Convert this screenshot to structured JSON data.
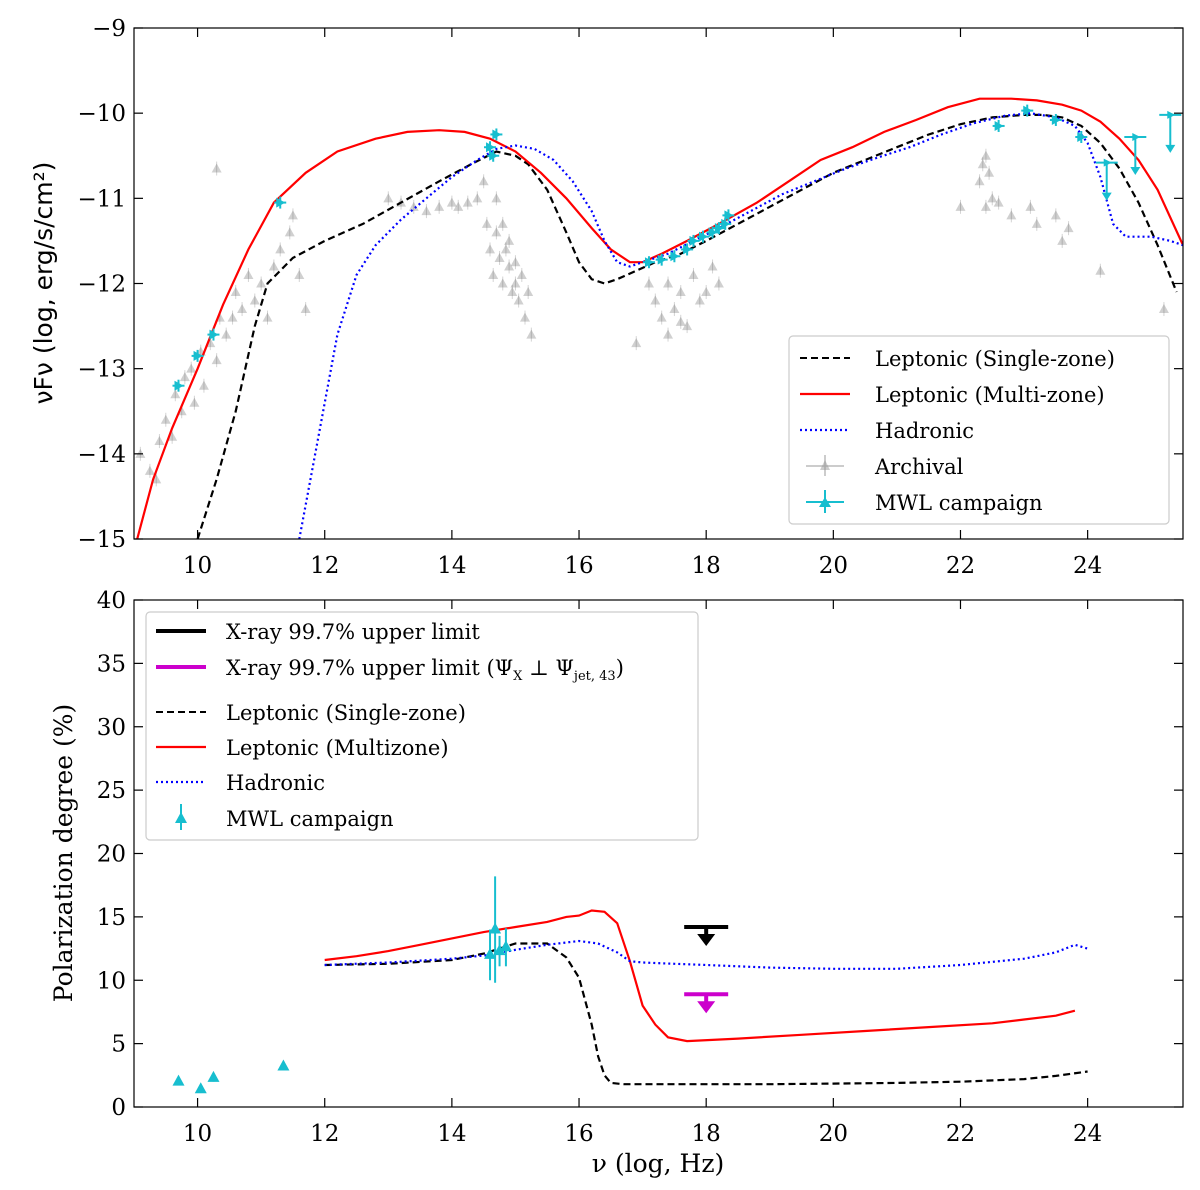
{
  "chart_data": [
    {
      "type": "line",
      "panel": "top",
      "ylabel": "νFν (log, erg/s/cm²)",
      "xlabel": "",
      "xlim": [
        9,
        25.5
      ],
      "ylim": [
        -15,
        -9
      ],
      "xticks": [
        10,
        12,
        14,
        16,
        18,
        20,
        22,
        24
      ],
      "yticks": [
        -15,
        -14,
        -13,
        -12,
        -11,
        -10,
        -9
      ],
      "legend_position": "lower-right",
      "legend": [
        {
          "label": "Leptonic (Single-zone)",
          "style": "dashed",
          "color": "#000000"
        },
        {
          "label": "Leptonic (Multi-zone)",
          "style": "solid",
          "color": "#ff0000"
        },
        {
          "label": "Hadronic",
          "style": "dotted",
          "color": "#0000ff"
        },
        {
          "label": "Archival",
          "style": "marker-gray",
          "color": "#888888"
        },
        {
          "label": "MWL campaign",
          "style": "marker-cyan",
          "color": "#17becf"
        }
      ],
      "series": [
        {
          "name": "Leptonic (Single-zone)",
          "color": "#000000",
          "dash": "dashed",
          "x": [
            10.0,
            10.3,
            10.6,
            10.9,
            11.1,
            11.5,
            12.0,
            12.6,
            13.2,
            13.8,
            14.3,
            14.7,
            15.0,
            15.2,
            15.5,
            15.8,
            16.0,
            16.2,
            16.4,
            16.6,
            16.9,
            17.2,
            17.6,
            18.0,
            18.5,
            19.0,
            19.5,
            20.0,
            20.5,
            21.0,
            21.5,
            22.0,
            22.5,
            23.0,
            23.3,
            23.6,
            23.9,
            24.2,
            24.5,
            24.8,
            25.1,
            25.4
          ],
          "y": [
            -15.0,
            -14.3,
            -13.5,
            -12.5,
            -12.0,
            -11.7,
            -11.5,
            -11.3,
            -11.05,
            -10.8,
            -10.6,
            -10.45,
            -10.5,
            -10.6,
            -10.9,
            -11.4,
            -11.75,
            -11.95,
            -12.0,
            -11.95,
            -11.85,
            -11.75,
            -11.65,
            -11.5,
            -11.3,
            -11.1,
            -10.9,
            -10.7,
            -10.55,
            -10.4,
            -10.25,
            -10.13,
            -10.05,
            -10.02,
            -10.02,
            -10.05,
            -10.15,
            -10.35,
            -10.65,
            -11.05,
            -11.55,
            -12.1
          ]
        },
        {
          "name": "Leptonic (Multi-zone)",
          "color": "#ff0000",
          "dash": "solid",
          "x": [
            9.05,
            9.3,
            9.6,
            10.0,
            10.4,
            10.8,
            11.2,
            11.7,
            12.2,
            12.8,
            13.3,
            13.8,
            14.2,
            14.6,
            15.0,
            15.4,
            15.8,
            16.2,
            16.5,
            16.8,
            17.0,
            17.3,
            17.7,
            18.2,
            18.8,
            19.3,
            19.8,
            20.3,
            20.8,
            21.3,
            21.8,
            22.3,
            22.8,
            23.2,
            23.6,
            23.9,
            24.2,
            24.5,
            24.8,
            25.1,
            25.5
          ],
          "y": [
            -15.0,
            -14.3,
            -13.7,
            -13.0,
            -12.25,
            -11.6,
            -11.05,
            -10.7,
            -10.45,
            -10.3,
            -10.22,
            -10.2,
            -10.22,
            -10.3,
            -10.45,
            -10.7,
            -11.0,
            -11.35,
            -11.6,
            -11.75,
            -11.75,
            -11.65,
            -11.5,
            -11.3,
            -11.05,
            -10.8,
            -10.55,
            -10.4,
            -10.22,
            -10.08,
            -9.93,
            -9.83,
            -9.83,
            -9.85,
            -9.9,
            -9.97,
            -10.1,
            -10.3,
            -10.55,
            -10.9,
            -11.55
          ]
        },
        {
          "name": "Hadronic",
          "color": "#0000ff",
          "dash": "dotted",
          "x": [
            11.6,
            11.9,
            12.2,
            12.5,
            12.8,
            13.2,
            13.6,
            14.0,
            14.4,
            14.7,
            15.0,
            15.3,
            15.6,
            15.9,
            16.2,
            16.4,
            16.6,
            16.8,
            17.0,
            17.4,
            17.8,
            18.2,
            18.7,
            19.2,
            19.7,
            20.2,
            20.7,
            21.2,
            21.7,
            22.2,
            22.7,
            23.1,
            23.5,
            23.8,
            24.0,
            24.2,
            24.4,
            24.6,
            24.8,
            25.0,
            25.3,
            25.5
          ],
          "y": [
            -15.0,
            -13.8,
            -12.6,
            -11.9,
            -11.55,
            -11.25,
            -11.0,
            -10.75,
            -10.55,
            -10.42,
            -10.38,
            -10.42,
            -10.55,
            -10.8,
            -11.15,
            -11.5,
            -11.75,
            -11.8,
            -11.75,
            -11.65,
            -11.5,
            -11.35,
            -11.15,
            -10.95,
            -10.8,
            -10.65,
            -10.52,
            -10.4,
            -10.25,
            -10.12,
            -10.03,
            -10.0,
            -10.05,
            -10.15,
            -10.35,
            -10.75,
            -11.3,
            -11.45,
            -11.45,
            -11.45,
            -11.5,
            -11.55
          ]
        }
      ],
      "archival_points": [
        [
          9.1,
          -14.0
        ],
        [
          9.25,
          -14.2
        ],
        [
          9.35,
          -14.3
        ],
        [
          9.4,
          -13.85
        ],
        [
          9.5,
          -13.6
        ],
        [
          9.6,
          -13.8
        ],
        [
          9.65,
          -13.3
        ],
        [
          9.75,
          -13.5
        ],
        [
          9.8,
          -13.1
        ],
        [
          9.9,
          -13.0
        ],
        [
          9.95,
          -13.4
        ],
        [
          10.05,
          -12.8
        ],
        [
          10.1,
          -13.2
        ],
        [
          10.2,
          -12.7
        ],
        [
          10.3,
          -12.9
        ],
        [
          10.35,
          -12.4
        ],
        [
          10.45,
          -12.6
        ],
        [
          10.55,
          -12.4
        ],
        [
          10.6,
          -12.1
        ],
        [
          10.7,
          -12.3
        ],
        [
          10.8,
          -11.9
        ],
        [
          10.9,
          -12.2
        ],
        [
          11.0,
          -12.0
        ],
        [
          11.1,
          -12.4
        ],
        [
          11.2,
          -11.8
        ],
        [
          11.3,
          -11.6
        ],
        [
          11.45,
          -11.4
        ],
        [
          11.5,
          -11.2
        ],
        [
          11.6,
          -11.9
        ],
        [
          11.7,
          -12.3
        ],
        [
          10.3,
          -10.65
        ],
        [
          13.0,
          -11.0
        ],
        [
          13.2,
          -11.05
        ],
        [
          13.4,
          -11.1
        ],
        [
          13.6,
          -11.15
        ],
        [
          13.8,
          -11.1
        ],
        [
          14.0,
          -11.05
        ],
        [
          14.1,
          -11.1
        ],
        [
          14.25,
          -11.05
        ],
        [
          14.4,
          -11.0
        ],
        [
          14.5,
          -10.8
        ],
        [
          14.55,
          -11.3
        ],
        [
          14.6,
          -11.6
        ],
        [
          14.65,
          -11.9
        ],
        [
          14.7,
          -11.4
        ],
        [
          14.75,
          -11.7
        ],
        [
          14.8,
          -12.0
        ],
        [
          14.85,
          -11.6
        ],
        [
          14.9,
          -11.8
        ],
        [
          14.95,
          -12.1
        ],
        [
          15.0,
          -11.75
        ],
        [
          15.05,
          -12.2
        ],
        [
          15.1,
          -11.9
        ],
        [
          15.15,
          -12.4
        ],
        [
          15.2,
          -12.1
        ],
        [
          15.25,
          -12.6
        ],
        [
          14.7,
          -11.0
        ],
        [
          14.8,
          -11.3
        ],
        [
          14.9,
          -11.5
        ],
        [
          15.0,
          -12.0
        ],
        [
          16.9,
          -12.7
        ],
        [
          17.1,
          -12.0
        ],
        [
          17.2,
          -12.2
        ],
        [
          17.3,
          -12.4
        ],
        [
          17.4,
          -12.0
        ],
        [
          17.5,
          -12.3
        ],
        [
          17.6,
          -12.1
        ],
        [
          17.7,
          -12.5
        ],
        [
          17.8,
          -11.9
        ],
        [
          17.9,
          -12.2
        ],
        [
          18.0,
          -12.1
        ],
        [
          18.1,
          -11.8
        ],
        [
          18.2,
          -12.0
        ],
        [
          17.4,
          -12.6
        ],
        [
          17.6,
          -12.45
        ],
        [
          22.3,
          -10.8
        ],
        [
          22.35,
          -10.6
        ],
        [
          22.4,
          -10.5
        ],
        [
          22.45,
          -10.7
        ],
        [
          22.5,
          -11.0
        ],
        [
          22.4,
          -11.1
        ],
        [
          22.6,
          -11.05
        ],
        [
          22.8,
          -11.2
        ],
        [
          23.1,
          -11.1
        ],
        [
          23.2,
          -11.3
        ],
        [
          23.5,
          -11.2
        ],
        [
          23.6,
          -11.5
        ],
        [
          23.7,
          -11.35
        ],
        [
          24.2,
          -11.85
        ],
        [
          25.2,
          -12.3
        ],
        [
          22.0,
          -11.1
        ]
      ],
      "mwl_points": [
        [
          9.7,
          -13.2
        ],
        [
          10.0,
          -12.85
        ],
        [
          10.25,
          -12.6
        ],
        [
          11.3,
          -11.05
        ],
        [
          14.6,
          -10.4
        ],
        [
          14.65,
          -10.5
        ],
        [
          14.7,
          -10.25
        ],
        [
          17.1,
          -11.75
        ],
        [
          17.3,
          -11.72
        ],
        [
          17.5,
          -11.68
        ],
        [
          17.7,
          -11.6
        ],
        [
          17.8,
          -11.5
        ],
        [
          17.95,
          -11.45
        ],
        [
          18.1,
          -11.4
        ],
        [
          18.2,
          -11.35
        ],
        [
          18.3,
          -11.3
        ],
        [
          18.35,
          -11.2
        ],
        [
          22.6,
          -10.15
        ],
        [
          23.05,
          -9.97
        ],
        [
          23.5,
          -10.08
        ],
        [
          23.9,
          -10.28
        ]
      ],
      "mwl_upper_limits": [
        [
          24.3,
          -10.58
        ],
        [
          24.75,
          -10.28
        ],
        [
          25.3,
          -10.02
        ]
      ]
    },
    {
      "type": "line",
      "panel": "bottom",
      "xlabel": "ν (log, Hz)",
      "ylabel": "Polarization degree (%)",
      "xlim": [
        9,
        25.5
      ],
      "ylim": [
        0,
        40
      ],
      "xticks": [
        10,
        12,
        14,
        16,
        18,
        20,
        22,
        24
      ],
      "yticks": [
        0,
        5,
        10,
        15,
        20,
        25,
        30,
        35,
        40
      ],
      "legend_position": "top-left",
      "legend": [
        {
          "label": "X-ray 99.7% upper limit",
          "style": "thick-line",
          "color": "#000000"
        },
        {
          "label": "X-ray 99.7% upper limit",
          "suffix": "(Ψ",
          "sub1": "X",
          "mid": " ⊥ Ψ",
          "sub2": "jet, 43",
          "end": ")",
          "style": "thick-line",
          "color": "#cc00cc"
        },
        {
          "label": "Leptonic (Single-zone)",
          "style": "dashed",
          "color": "#000000"
        },
        {
          "label": "Leptonic (Multizone)",
          "style": "solid",
          "color": "#ff0000"
        },
        {
          "label": "Hadronic",
          "style": "dotted",
          "color": "#0000ff"
        },
        {
          "label": "MWL campaign",
          "style": "marker-cyan",
          "color": "#17becf"
        }
      ],
      "series": [
        {
          "name": "Leptonic (Single-zone)",
          "color": "#000000",
          "dash": "dashed",
          "x": [
            12.0,
            13.0,
            14.0,
            14.5,
            15.0,
            15.5,
            15.8,
            16.0,
            16.2,
            16.3,
            16.4,
            16.5,
            16.7,
            17.0,
            18.0,
            19.0,
            20.0,
            21.0,
            22.0,
            23.0,
            23.5,
            24.0
          ],
          "y": [
            11.2,
            11.3,
            11.6,
            12.1,
            12.9,
            12.9,
            11.8,
            10.2,
            6.5,
            4.0,
            2.5,
            1.9,
            1.8,
            1.8,
            1.8,
            1.8,
            1.85,
            1.9,
            2.0,
            2.2,
            2.45,
            2.8
          ]
        },
        {
          "name": "Leptonic (Multizone)",
          "color": "#ff0000",
          "dash": "solid",
          "x": [
            12.0,
            12.5,
            13.0,
            13.5,
            14.0,
            14.5,
            15.0,
            15.5,
            15.8,
            16.0,
            16.2,
            16.4,
            16.6,
            16.8,
            17.0,
            17.2,
            17.4,
            17.7,
            18.5,
            19.5,
            20.5,
            21.5,
            22.5,
            23.0,
            23.5,
            23.8
          ],
          "y": [
            11.6,
            11.9,
            12.3,
            12.8,
            13.3,
            13.8,
            14.2,
            14.6,
            15.0,
            15.1,
            15.5,
            15.4,
            14.5,
            11.5,
            8.0,
            6.5,
            5.5,
            5.2,
            5.4,
            5.7,
            6.0,
            6.3,
            6.6,
            6.9,
            7.2,
            7.6
          ]
        },
        {
          "name": "Hadronic",
          "color": "#0000ff",
          "dash": "dotted",
          "x": [
            12.0,
            13.0,
            14.0,
            14.6,
            15.0,
            15.5,
            16.0,
            16.3,
            16.6,
            16.8,
            17.0,
            17.5,
            18.0,
            19.0,
            20.0,
            21.0,
            22.0,
            23.0,
            23.5,
            23.8,
            24.0
          ],
          "y": [
            11.2,
            11.4,
            11.7,
            12.0,
            12.4,
            12.8,
            13.1,
            12.9,
            12.2,
            11.5,
            11.4,
            11.3,
            11.2,
            11.0,
            10.9,
            10.9,
            11.2,
            11.7,
            12.2,
            12.8,
            12.5
          ]
        }
      ],
      "mwl_points": [
        [
          9.7,
          2.0,
          0.3
        ],
        [
          10.05,
          1.4,
          0.3
        ],
        [
          10.25,
          2.3,
          0.3
        ],
        [
          11.35,
          3.2,
          0.3
        ],
        [
          14.6,
          12.0,
          2.0
        ],
        [
          14.68,
          14.0,
          4.2
        ],
        [
          14.75,
          12.3,
          1.2
        ],
        [
          14.85,
          12.6,
          1.5
        ]
      ],
      "upper_limits": [
        {
          "name": "X-ray 99.7% upper limit",
          "x": 18.0,
          "y": 14.2,
          "color": "#000000"
        },
        {
          "name": "X-ray 99.7% upper limit (perp)",
          "x": 18.0,
          "y": 8.9,
          "color": "#cc00cc"
        }
      ]
    }
  ]
}
